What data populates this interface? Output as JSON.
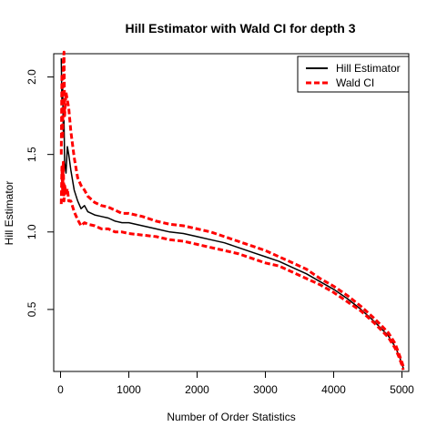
{
  "chart_data": {
    "type": "line",
    "title": "Hill Estimator with Wald CI for depth 3",
    "xlabel": "Number of Order Statistics",
    "ylabel": "Hill Estimator",
    "xlim": [
      -100,
      5100
    ],
    "ylim": [
      0.1,
      2.15
    ],
    "x_ticks": [
      0,
      1000,
      2000,
      3000,
      4000,
      5000
    ],
    "y_ticks": [
      0.5,
      1.0,
      1.5,
      2.0
    ],
    "legend_position": "top-right",
    "grid": false,
    "series": [
      {
        "name": "Hill Estimator",
        "color": "#000000",
        "style": "solid",
        "x": [
          10,
          20,
          30,
          40,
          50,
          60,
          80,
          100,
          120,
          150,
          200,
          250,
          300,
          350,
          400,
          500,
          600,
          700,
          800,
          900,
          1000,
          1200,
          1400,
          1600,
          1800,
          2000,
          2200,
          2400,
          2600,
          2800,
          3000,
          3200,
          3400,
          3600,
          3800,
          4000,
          4200,
          4400,
          4600,
          4800,
          4900,
          4950,
          5000,
          5020
        ],
        "values": [
          2.12,
          1.85,
          1.95,
          1.65,
          1.72,
          1.45,
          1.38,
          1.55,
          1.5,
          1.4,
          1.27,
          1.2,
          1.15,
          1.17,
          1.13,
          1.11,
          1.1,
          1.09,
          1.07,
          1.06,
          1.06,
          1.04,
          1.02,
          1.0,
          0.99,
          0.97,
          0.95,
          0.93,
          0.9,
          0.87,
          0.84,
          0.81,
          0.77,
          0.73,
          0.68,
          0.63,
          0.57,
          0.5,
          0.42,
          0.33,
          0.26,
          0.21,
          0.15,
          0.12
        ]
      },
      {
        "name": "Wald CI",
        "color": "#ff0000",
        "style": "dashed",
        "x": [
          10,
          20,
          30,
          40,
          50,
          60,
          80,
          100,
          120,
          150,
          200,
          250,
          300,
          350,
          400,
          500,
          600,
          700,
          800,
          900,
          1000,
          1200,
          1400,
          1600,
          1800,
          2000,
          2200,
          2400,
          2600,
          2800,
          3000,
          3200,
          3400,
          3600,
          3800,
          4000,
          4200,
          4400,
          4600,
          4800,
          4900,
          4950,
          5000,
          5020
        ],
        "values": [
          1.18,
          1.42,
          1.25,
          1.45,
          1.2,
          1.3,
          1.25,
          1.28,
          1.2,
          1.2,
          1.13,
          1.08,
          1.04,
          1.06,
          1.05,
          1.04,
          1.02,
          1.02,
          1.0,
          1.0,
          0.99,
          0.98,
          0.97,
          0.95,
          0.94,
          0.92,
          0.9,
          0.88,
          0.86,
          0.83,
          0.8,
          0.78,
          0.74,
          0.7,
          0.66,
          0.61,
          0.55,
          0.49,
          0.41,
          0.32,
          0.25,
          0.2,
          0.14,
          0.11
        ]
      },
      {
        "name": "",
        "color": "#ff0000",
        "style": "dashed",
        "x": [
          10,
          20,
          30,
          40,
          50,
          60,
          80,
          100,
          120,
          150,
          200,
          250,
          300,
          350,
          400,
          500,
          600,
          700,
          800,
          900,
          1000,
          1200,
          1400,
          1600,
          1800,
          2000,
          2200,
          2400,
          2600,
          2800,
          3000,
          3200,
          3400,
          3600,
          3800,
          4000,
          4200,
          4400,
          4600,
          4800,
          4900,
          4950,
          5000,
          5020
        ],
        "values": [
          1.5,
          2.02,
          1.6,
          2.1,
          2.16,
          1.75,
          1.9,
          1.85,
          1.8,
          1.65,
          1.48,
          1.35,
          1.3,
          1.27,
          1.23,
          1.19,
          1.17,
          1.16,
          1.14,
          1.12,
          1.12,
          1.1,
          1.07,
          1.05,
          1.04,
          1.02,
          1.0,
          0.97,
          0.94,
          0.91,
          0.88,
          0.84,
          0.8,
          0.76,
          0.7,
          0.65,
          0.59,
          0.52,
          0.44,
          0.35,
          0.28,
          0.22,
          0.16,
          0.13
        ]
      }
    ],
    "legend": [
      {
        "label": "Hill Estimator",
        "color": "#000000",
        "style": "solid"
      },
      {
        "label": "Wald CI",
        "color": "#ff0000",
        "style": "dashed"
      }
    ]
  }
}
